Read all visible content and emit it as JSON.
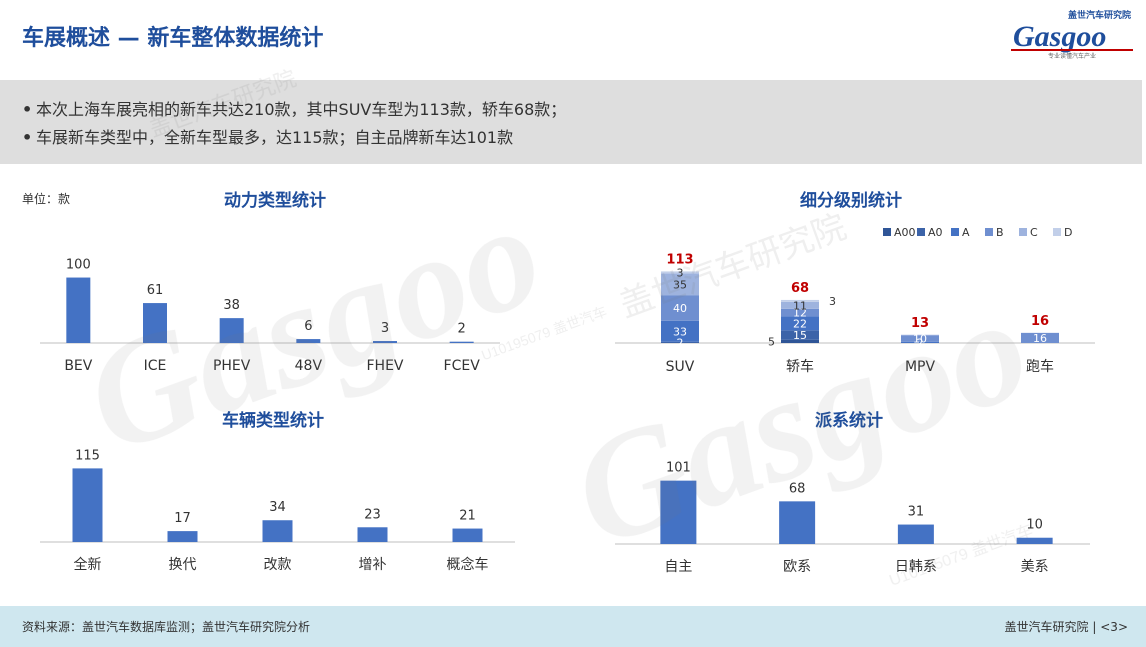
{
  "page": {
    "title": "车展概述 — 新车整体数据统计",
    "summary": [
      "本次上海车展亮相的新车共达210款，其中SUV车型为113款，轿车68款；",
      "车展新车类型中，全新车型最多，达115款；自主品牌新车达101款"
    ],
    "unit": "单位：款",
    "logo_text": "Gasgoo",
    "logo_cn": "盖世汽车研究院",
    "logo_tagline": "专业读懂汽车产业",
    "watermark_text": "Gasgoo",
    "watermark_cn": "盖世汽车研究院",
    "watermark_id": "U10195079 盖世汽车",
    "footer_source": "资料来源：盖世汽车数据库监测；盖世汽车研究院分析",
    "footer_org": "盖世汽车研究院",
    "footer_page": "<3>"
  },
  "colors": {
    "title": "#1f4e9c",
    "bar": "#4472c4",
    "total_label": "#c00000",
    "seg_A00": "#2f5597",
    "seg_A0": "#3c63a8",
    "seg_A": "#4472c4",
    "seg_B": "#6f8fd0",
    "seg_C": "#9eb3de",
    "seg_D": "#c2cfe9"
  },
  "chart_data": [
    {
      "id": "power",
      "type": "bar",
      "title": "动力类型统计",
      "categories": [
        "BEV",
        "ICE",
        "PHEV",
        "48V",
        "FHEV",
        "FCEV"
      ],
      "values": [
        100,
        61,
        38,
        6,
        3,
        2
      ],
      "ylim": [
        0,
        110
      ]
    },
    {
      "id": "segment",
      "type": "bar",
      "stacked": true,
      "title": "细分级别统计",
      "categories": [
        "SUV",
        "轿车",
        "MPV",
        "跑车"
      ],
      "legend": [
        "A00",
        "A0",
        "A",
        "B",
        "C",
        "D"
      ],
      "legend_position": "top-right",
      "series": [
        {
          "name": "A00",
          "values": [
            0,
            5,
            0,
            0
          ]
        },
        {
          "name": "A0",
          "values": [
            2,
            15,
            0,
            0
          ]
        },
        {
          "name": "A",
          "values": [
            33,
            22,
            2,
            0
          ]
        },
        {
          "name": "B",
          "values": [
            40,
            12,
            10,
            16
          ]
        },
        {
          "name": "C",
          "values": [
            35,
            11,
            1,
            0
          ]
        },
        {
          "name": "D",
          "values": [
            3,
            3,
            0,
            0
          ]
        }
      ],
      "totals": [
        113,
        68,
        13,
        16
      ],
      "segment_labels": [
        {
          "category": 0,
          "series": 1,
          "text": "2"
        },
        {
          "category": 0,
          "series": 2,
          "text": "33"
        },
        {
          "category": 0,
          "series": 3,
          "text": "40"
        },
        {
          "category": 0,
          "series": 4,
          "text": "35"
        },
        {
          "category": 0,
          "series": 5,
          "text": "3"
        },
        {
          "category": 1,
          "series": 0,
          "text": "5"
        },
        {
          "category": 1,
          "series": 1,
          "text": "15"
        },
        {
          "category": 1,
          "series": 2,
          "text": "22"
        },
        {
          "category": 1,
          "series": 3,
          "text": "12"
        },
        {
          "category": 1,
          "series": 4,
          "text": "11"
        },
        {
          "category": 1,
          "series": 5,
          "text": "3"
        },
        {
          "category": 2,
          "series": 2,
          "text": "2"
        },
        {
          "category": 2,
          "series": 3,
          "text": "10"
        },
        {
          "category": 3,
          "series": 3,
          "text": "16"
        }
      ],
      "ylim": [
        0,
        120
      ]
    },
    {
      "id": "vehicle",
      "type": "bar",
      "title": "车辆类型统计",
      "categories": [
        "全新",
        "换代",
        "改款",
        "增补",
        "概念车"
      ],
      "values": [
        115,
        17,
        34,
        23,
        21
      ],
      "ylim": [
        0,
        125
      ]
    },
    {
      "id": "faction",
      "type": "bar",
      "title": "派系统计",
      "categories": [
        "自主",
        "欧系",
        "日韩系",
        "美系"
      ],
      "values": [
        101,
        68,
        31,
        10
      ],
      "ylim": [
        0,
        110
      ]
    }
  ]
}
